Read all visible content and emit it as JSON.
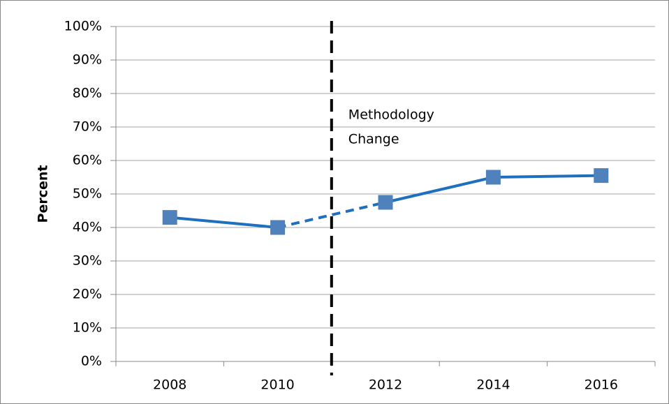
{
  "chart_data": {
    "type": "line",
    "y_label": "Percent",
    "categories": [
      "2008",
      "2010",
      "2012",
      "2014",
      "2016"
    ],
    "series": [
      {
        "name": "Percent",
        "color": "#1f6fc0",
        "marker_color": "#4f81bd",
        "values": [
          43,
          40,
          47.5,
          55,
          55.5
        ]
      }
    ],
    "dashed_segments": [
      1
    ],
    "annotation": {
      "lines": [
        "Methodology",
        "Change"
      ],
      "after_category": 1
    },
    "ylim": [
      0,
      100
    ],
    "yticks": [
      {
        "value": 0,
        "label": "0%"
      },
      {
        "value": 10,
        "label": "10%"
      },
      {
        "value": 20,
        "label": "20%"
      },
      {
        "value": 30,
        "label": "30%"
      },
      {
        "value": 40,
        "label": "40%"
      },
      {
        "value": 50,
        "label": "50%"
      },
      {
        "value": 60,
        "label": "60%"
      },
      {
        "value": 70,
        "label": "70%"
      },
      {
        "value": 80,
        "label": "80%"
      },
      {
        "value": 90,
        "label": "90%"
      },
      {
        "value": 100,
        "label": "100%"
      }
    ],
    "grid": true,
    "legend": false
  }
}
